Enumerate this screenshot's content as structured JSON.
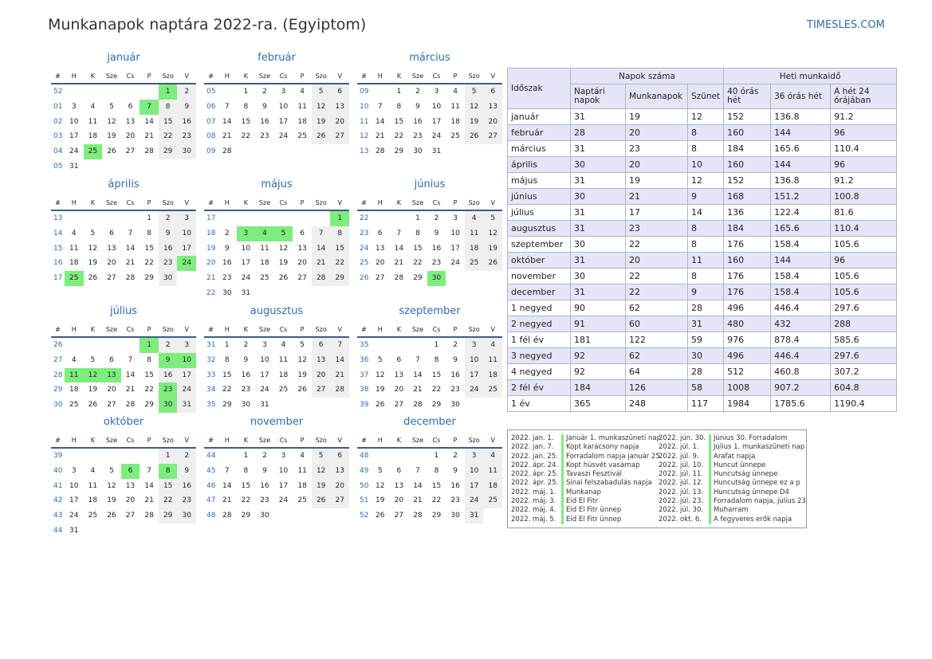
{
  "title": "Munkanapok naptára 2022-ra. (Egyiptom)",
  "site": "TIMESLES.COM",
  "weekday_headers": [
    "#",
    "H",
    "K",
    "Sze",
    "Cs",
    "P",
    "Szo",
    "V"
  ],
  "months": [
    {
      "name": "január",
      "weeks": [
        [
          52,
          "",
          "",
          "",
          "",
          "",
          "1",
          "2"
        ],
        [
          "01",
          "3",
          "4",
          "5",
          "6",
          "7",
          "8",
          "9"
        ],
        [
          "02",
          "10",
          "11",
          "12",
          "13",
          "14",
          "15",
          "16"
        ],
        [
          "03",
          "17",
          "18",
          "19",
          "20",
          "21",
          "22",
          "23"
        ],
        [
          "04",
          "24",
          "25",
          "26",
          "27",
          "28",
          "29",
          "30"
        ],
        [
          "05",
          "31",
          "",
          "",
          "",
          "",
          "",
          ""
        ]
      ],
      "holidays": [
        "1",
        "7",
        "25"
      ]
    },
    {
      "name": "február",
      "weeks": [
        [
          "05",
          "",
          "1",
          "2",
          "3",
          "4",
          "5",
          "6"
        ],
        [
          "06",
          "7",
          "8",
          "9",
          "10",
          "11",
          "12",
          "13"
        ],
        [
          "07",
          "14",
          "15",
          "16",
          "17",
          "18",
          "19",
          "20"
        ],
        [
          "08",
          "21",
          "22",
          "23",
          "24",
          "25",
          "26",
          "27"
        ],
        [
          "09",
          "28",
          "",
          "",
          "",
          "",
          "",
          ""
        ]
      ],
      "holidays": []
    },
    {
      "name": "március",
      "weeks": [
        [
          "09",
          "",
          "1",
          "2",
          "3",
          "4",
          "5",
          "6"
        ],
        [
          "10",
          "7",
          "8",
          "9",
          "10",
          "11",
          "12",
          "13"
        ],
        [
          "11",
          "14",
          "15",
          "16",
          "17",
          "18",
          "19",
          "20"
        ],
        [
          "12",
          "21",
          "22",
          "23",
          "24",
          "25",
          "26",
          "27"
        ],
        [
          "13",
          "28",
          "29",
          "30",
          "31",
          "",
          "",
          ""
        ]
      ],
      "holidays": []
    },
    {
      "name": "április",
      "weeks": [
        [
          "13",
          "",
          "",
          "",
          "",
          "1",
          "2",
          "3"
        ],
        [
          "14",
          "4",
          "5",
          "6",
          "7",
          "8",
          "9",
          "10"
        ],
        [
          "15",
          "11",
          "12",
          "13",
          "14",
          "15",
          "16",
          "17"
        ],
        [
          "16",
          "18",
          "19",
          "20",
          "21",
          "22",
          "23",
          "24"
        ],
        [
          "17",
          "25",
          "26",
          "27",
          "28",
          "29",
          "30",
          ""
        ]
      ],
      "holidays": [
        "24",
        "25"
      ]
    },
    {
      "name": "május",
      "weeks": [
        [
          "17",
          "",
          "",
          "",
          "",
          "",
          "",
          "1"
        ],
        [
          "18",
          "2",
          "3",
          "4",
          "5",
          "6",
          "7",
          "8"
        ],
        [
          "19",
          "9",
          "10",
          "11",
          "12",
          "13",
          "14",
          "15"
        ],
        [
          "20",
          "16",
          "17",
          "18",
          "19",
          "20",
          "21",
          "22"
        ],
        [
          "21",
          "23",
          "24",
          "25",
          "26",
          "27",
          "28",
          "29"
        ],
        [
          "22",
          "30",
          "31",
          "",
          "",
          "",
          "",
          ""
        ]
      ],
      "holidays": [
        "1",
        "3",
        "4",
        "5"
      ]
    },
    {
      "name": "június",
      "weeks": [
        [
          "22",
          "",
          "",
          "1",
          "2",
          "3",
          "4",
          "5"
        ],
        [
          "23",
          "6",
          "7",
          "8",
          "9",
          "10",
          "11",
          "12"
        ],
        [
          "24",
          "13",
          "14",
          "15",
          "16",
          "17",
          "18",
          "19"
        ],
        [
          "25",
          "20",
          "21",
          "22",
          "23",
          "24",
          "25",
          "26"
        ],
        [
          "26",
          "27",
          "28",
          "29",
          "30",
          "",
          "",
          ""
        ]
      ],
      "holidays": [
        "30"
      ]
    },
    {
      "name": "július",
      "weeks": [
        [
          "26",
          "",
          "",
          "",
          "",
          "1",
          "2",
          "3"
        ],
        [
          "27",
          "4",
          "5",
          "6",
          "7",
          "8",
          "9",
          "10"
        ],
        [
          "28",
          "11",
          "12",
          "13",
          "14",
          "15",
          "16",
          "17"
        ],
        [
          "29",
          "18",
          "19",
          "20",
          "21",
          "22",
          "23",
          "24"
        ],
        [
          "30",
          "25",
          "26",
          "27",
          "28",
          "29",
          "30",
          "31"
        ]
      ],
      "holidays": [
        "1",
        "9",
        "10",
        "11",
        "12",
        "13",
        "23",
        "30"
      ]
    },
    {
      "name": "augusztus",
      "weeks": [
        [
          "31",
          "1",
          "2",
          "3",
          "4",
          "5",
          "6",
          "7"
        ],
        [
          "32",
          "8",
          "9",
          "10",
          "11",
          "12",
          "13",
          "14"
        ],
        [
          "33",
          "15",
          "16",
          "17",
          "18",
          "19",
          "20",
          "21"
        ],
        [
          "34",
          "22",
          "23",
          "24",
          "25",
          "26",
          "27",
          "28"
        ],
        [
          "35",
          "29",
          "30",
          "31",
          "",
          "",
          "",
          ""
        ]
      ],
      "holidays": []
    },
    {
      "name": "szeptember",
      "weeks": [
        [
          "35",
          "",
          "",
          "",
          "1",
          "2",
          "3",
          "4"
        ],
        [
          "36",
          "5",
          "6",
          "7",
          "8",
          "9",
          "10",
          "11"
        ],
        [
          "37",
          "12",
          "13",
          "14",
          "15",
          "16",
          "17",
          "18"
        ],
        [
          "38",
          "19",
          "20",
          "21",
          "22",
          "23",
          "24",
          "25"
        ],
        [
          "39",
          "26",
          "27",
          "28",
          "29",
          "30",
          "",
          ""
        ]
      ],
      "holidays": []
    },
    {
      "name": "október",
      "weeks": [
        [
          "39",
          "",
          "",
          "",
          "",
          "",
          "1",
          "2"
        ],
        [
          "40",
          "3",
          "4",
          "5",
          "6",
          "7",
          "8",
          "9"
        ],
        [
          "41",
          "10",
          "11",
          "12",
          "13",
          "14",
          "15",
          "16"
        ],
        [
          "42",
          "17",
          "18",
          "19",
          "20",
          "21",
          "22",
          "23"
        ],
        [
          "43",
          "24",
          "25",
          "26",
          "27",
          "28",
          "29",
          "30"
        ],
        [
          "44",
          "31",
          "",
          "",
          "",
          "",
          "",
          ""
        ]
      ],
      "holidays": [
        "6",
        "8"
      ]
    },
    {
      "name": "november",
      "weeks": [
        [
          "44",
          "",
          "1",
          "2",
          "3",
          "4",
          "5",
          "6"
        ],
        [
          "45",
          "7",
          "8",
          "9",
          "10",
          "11",
          "12",
          "13"
        ],
        [
          "46",
          "14",
          "15",
          "16",
          "17",
          "18",
          "19",
          "20"
        ],
        [
          "47",
          "21",
          "22",
          "23",
          "24",
          "25",
          "26",
          "27"
        ],
        [
          "48",
          "28",
          "29",
          "30",
          "",
          "",
          "",
          ""
        ]
      ],
      "holidays": []
    },
    {
      "name": "december",
      "weeks": [
        [
          "48",
          "",
          "",
          "",
          "1",
          "2",
          "3",
          "4"
        ],
        [
          "49",
          "5",
          "6",
          "7",
          "8",
          "9",
          "10",
          "11"
        ],
        [
          "50",
          "12",
          "13",
          "14",
          "15",
          "16",
          "17",
          "18"
        ],
        [
          "51",
          "19",
          "20",
          "21",
          "22",
          "23",
          "24",
          "25"
        ],
        [
          "52",
          "26",
          "27",
          "28",
          "29",
          "30",
          "31",
          ""
        ]
      ],
      "holidays": []
    }
  ],
  "stats": {
    "period_header": "Időszak",
    "days_header": "Napok száma",
    "weekly_header": "Heti munkaidő",
    "sub_headers": [
      "Naptári napok",
      "Munkanapok",
      "Szünet",
      "40 órás hét",
      "36 órás hét",
      "A hét 24 órájában"
    ],
    "rows": [
      [
        "január",
        "31",
        "19",
        "12",
        "152",
        "136.8",
        "91.2"
      ],
      [
        "február",
        "28",
        "20",
        "8",
        "160",
        "144",
        "96"
      ],
      [
        "március",
        "31",
        "23",
        "8",
        "184",
        "165.6",
        "110.4"
      ],
      [
        "április",
        "30",
        "20",
        "10",
        "160",
        "144",
        "96"
      ],
      [
        "május",
        "31",
        "19",
        "12",
        "152",
        "136.8",
        "91.2"
      ],
      [
        "június",
        "30",
        "21",
        "9",
        "168",
        "151.2",
        "100.8"
      ],
      [
        "július",
        "31",
        "17",
        "14",
        "136",
        "122.4",
        "81.6"
      ],
      [
        "augusztus",
        "31",
        "23",
        "8",
        "184",
        "165.6",
        "110.4"
      ],
      [
        "szeptember",
        "30",
        "22",
        "8",
        "176",
        "158.4",
        "105.6"
      ],
      [
        "október",
        "31",
        "20",
        "11",
        "160",
        "144",
        "96"
      ],
      [
        "november",
        "30",
        "22",
        "8",
        "176",
        "158.4",
        "105.6"
      ],
      [
        "december",
        "31",
        "22",
        "9",
        "176",
        "158.4",
        "105.6"
      ],
      [
        "1 negyed",
        "90",
        "62",
        "28",
        "496",
        "446.4",
        "297.6"
      ],
      [
        "2 negyed",
        "91",
        "60",
        "31",
        "480",
        "432",
        "288"
      ],
      [
        "1 fél év",
        "181",
        "122",
        "59",
        "976",
        "878.4",
        "585.6"
      ],
      [
        "3 negyed",
        "92",
        "62",
        "30",
        "496",
        "446.4",
        "297.6"
      ],
      [
        "4 negyed",
        "92",
        "64",
        "28",
        "512",
        "460.8",
        "307.2"
      ],
      [
        "2 fél év",
        "184",
        "126",
        "58",
        "1008",
        "907.2",
        "604.8"
      ],
      [
        "1 év",
        "365",
        "248",
        "117",
        "1984",
        "1785.6",
        "1190.4"
      ]
    ],
    "highlight_rows": [
      1,
      3,
      5,
      7,
      9,
      11,
      13,
      15,
      17
    ]
  },
  "holidays_left": [
    [
      "2022. jan. 1.",
      "Január 1. munkaszüneti nap"
    ],
    [
      "2022. jan. 7.",
      "Kopt karácsony napja"
    ],
    [
      "2022. jan. 25.",
      "Forradalom napja január 25"
    ],
    [
      "2022. ápr. 24.",
      "Kopt húsvét vasárnap"
    ],
    [
      "2022. ápr. 25.",
      "Tavaszi Fesztivál"
    ],
    [
      "2022. ápr. 25.",
      "Sinai felszabadulás napja"
    ],
    [
      "2022. máj. 1.",
      "Munkanap"
    ],
    [
      "2022. máj. 3.",
      "Eid El Fitr"
    ],
    [
      "2022. máj. 4.",
      "Eid El Fitr ünnep"
    ],
    [
      "2022. máj. 5.",
      "Eid El Fitr ünnep"
    ]
  ],
  "holidays_right": [
    [
      "2022. jún. 30.",
      "Június 30. Forradalom"
    ],
    [
      "2022. júl. 1.",
      "Július 1. munkaszüneti nap"
    ],
    [
      "2022. júl. 9.",
      "Arafat napja"
    ],
    [
      "2022. júl. 10.",
      "Huncut ünnepe"
    ],
    [
      "2022. júl. 11.",
      "Huncutság ünnepe"
    ],
    [
      "2022. júl. 12.",
      "Huncutság ünnepe ez a p"
    ],
    [
      "2022. júl. 13.",
      "Huncutság ünnepe D4"
    ],
    [
      "2022. júl. 23.",
      "Forradalom napja, július 23"
    ],
    [
      "2022. júl. 30.",
      "Muharram"
    ],
    [
      "2022. okt. 6.",
      "A fegyveres erők napja"
    ]
  ]
}
